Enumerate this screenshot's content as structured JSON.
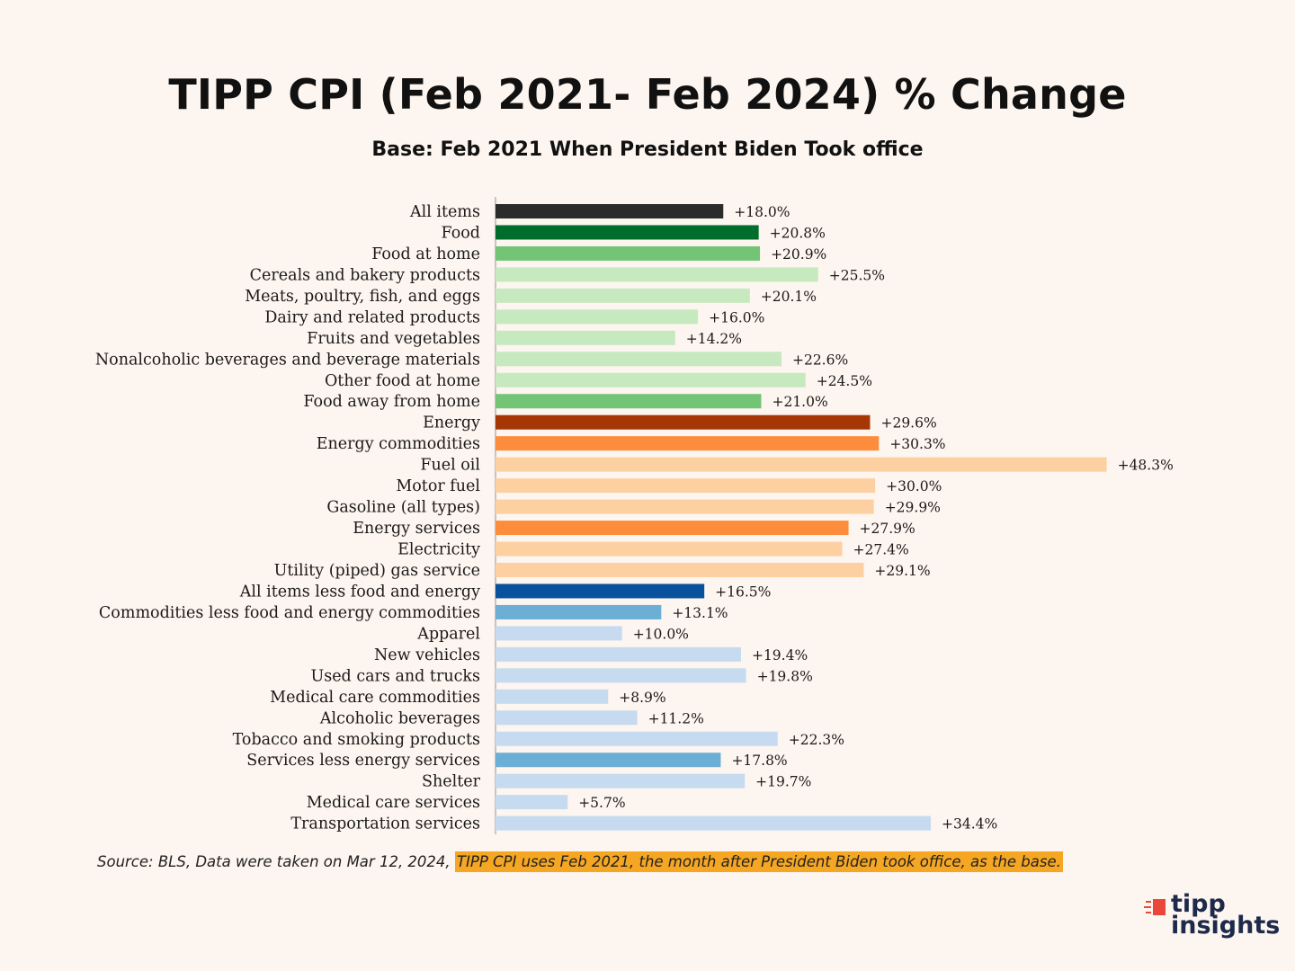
{
  "title": "TIPP CPI (Feb 2021- Feb 2024) % Change",
  "subtitle": "Base: Feb 2021 When President Biden Took office",
  "footnote": {
    "source": "Source:  BLS, Data were taken on Mar 12, 2024,  ",
    "highlight": "TIPP CPI uses Feb 2021, the month after President Biden took office, as the base."
  },
  "logo": {
    "line1": "tipp",
    "line2": "insights"
  },
  "chart_data": {
    "type": "bar",
    "orientation": "horizontal",
    "title": "TIPP CPI (Feb 2021- Feb 2024) % Change",
    "subtitle": "Base: Feb 2021 When President Biden Took office",
    "xlim": [
      0,
      50
    ],
    "categories": [
      "All items",
      "Food",
      "Food at home",
      "Cereals and bakery products",
      "Meats, poultry, fish, and eggs",
      "Dairy and related products",
      "Fruits and vegetables",
      "Nonalcoholic beverages and beverage materials",
      "Other food at home",
      "Food away from home",
      "Energy",
      "Energy commodities",
      "Fuel oil",
      "Motor fuel",
      "Gasoline (all types)",
      "Energy services",
      "Electricity",
      "Utility (piped) gas service",
      "All items less food and energy",
      "Commodities less food and energy commodities",
      "Apparel",
      "New vehicles",
      "Used cars and trucks",
      "Medical care commodities",
      "Alcoholic beverages",
      "Tobacco and smoking products",
      "Services less energy services",
      "Shelter",
      "Medical care services",
      "Transportation services"
    ],
    "values": [
      18.0,
      20.8,
      20.9,
      25.5,
      20.1,
      16.0,
      14.2,
      22.6,
      24.5,
      21.0,
      29.6,
      30.3,
      48.3,
      30.0,
      29.9,
      27.9,
      27.4,
      29.1,
      16.5,
      13.1,
      10.0,
      19.4,
      19.8,
      8.9,
      11.2,
      22.3,
      17.8,
      19.7,
      5.7,
      34.4
    ],
    "labels": [
      "+18.0%",
      "+20.8%",
      "+20.9%",
      "+25.5%",
      "+20.1%",
      "+16.0%",
      "+14.2%",
      "+22.6%",
      "+24.5%",
      "+21.0%",
      "+29.6%",
      "+30.3%",
      "+48.3%",
      "+30.0%",
      "+29.9%",
      "+27.9%",
      "+27.4%",
      "+29.1%",
      "+16.5%",
      "+13.1%",
      "+10.0%",
      "+19.4%",
      "+19.8%",
      "+8.9%",
      "+11.2%",
      "+22.3%",
      "+17.8%",
      "+19.7%",
      "+5.7%",
      "+34.4%"
    ],
    "colors": [
      "#2b2b2b",
      "#006d2c",
      "#74c476",
      "#c7e9c0",
      "#c7e9c0",
      "#c7e9c0",
      "#c7e9c0",
      "#c7e9c0",
      "#c7e9c0",
      "#74c476",
      "#a63603",
      "#fd8d3c",
      "#fdd0a2",
      "#fdd0a2",
      "#fdd0a2",
      "#fd8d3c",
      "#fdd0a2",
      "#fdd0a2",
      "#08519c",
      "#6baed6",
      "#c6dbef",
      "#c6dbef",
      "#c6dbef",
      "#c6dbef",
      "#c6dbef",
      "#c6dbef",
      "#6baed6",
      "#c6dbef",
      "#c6dbef",
      "#c6dbef"
    ]
  }
}
